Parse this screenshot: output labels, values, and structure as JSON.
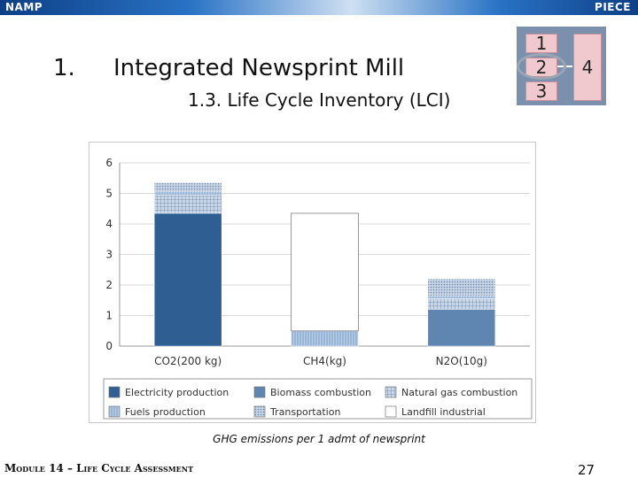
{
  "header": {
    "left_label": "NAMP",
    "right_label": "PIECE"
  },
  "section": {
    "number": "1.",
    "title": "Integrated Newsprint Mill",
    "subtitle": "1.3. Life Cycle Inventory (LCI)"
  },
  "lifecycle_icon": {
    "boxes": [
      "1",
      "2",
      "3",
      "4"
    ],
    "highlighted": "2"
  },
  "caption": "GHG emissions per 1 admt of newsprint",
  "footer": {
    "module": "Module 14 – Life Cycle Assessment",
    "page": "27"
  },
  "chart_data": {
    "type": "bar",
    "stacked": true,
    "categories": [
      "CO2(200 kg)",
      "CH4(kg)",
      "N2O(10g)"
    ],
    "ylim": [
      0,
      6
    ],
    "yticks": [
      0,
      1,
      2,
      3,
      4,
      5,
      6
    ],
    "grid": true,
    "legend_position": "bottom",
    "series": [
      {
        "name": "Electricity production",
        "color": "#2f5f92",
        "pattern": "solid",
        "values": [
          4.35,
          0,
          0
        ]
      },
      {
        "name": "Biomass combustion",
        "color": "#5f86b1",
        "pattern": "solid",
        "values": [
          0,
          0,
          1.2
        ]
      },
      {
        "name": "Natural gas combustion",
        "color": "#a8bdd9",
        "pattern": "grid",
        "values": [
          0.6,
          0,
          0.35
        ]
      },
      {
        "name": "Fuels production",
        "color": "#8eb0d4",
        "pattern": "vlines",
        "values": [
          0.1,
          0.5,
          0.1
        ]
      },
      {
        "name": "Transportation",
        "color": "#9db4d1",
        "pattern": "dots",
        "values": [
          0.3,
          0,
          0.55
        ]
      },
      {
        "name": "Landfill industrial",
        "color": "#ffffff",
        "pattern": "none",
        "values": [
          0,
          3.85,
          0
        ]
      }
    ]
  }
}
